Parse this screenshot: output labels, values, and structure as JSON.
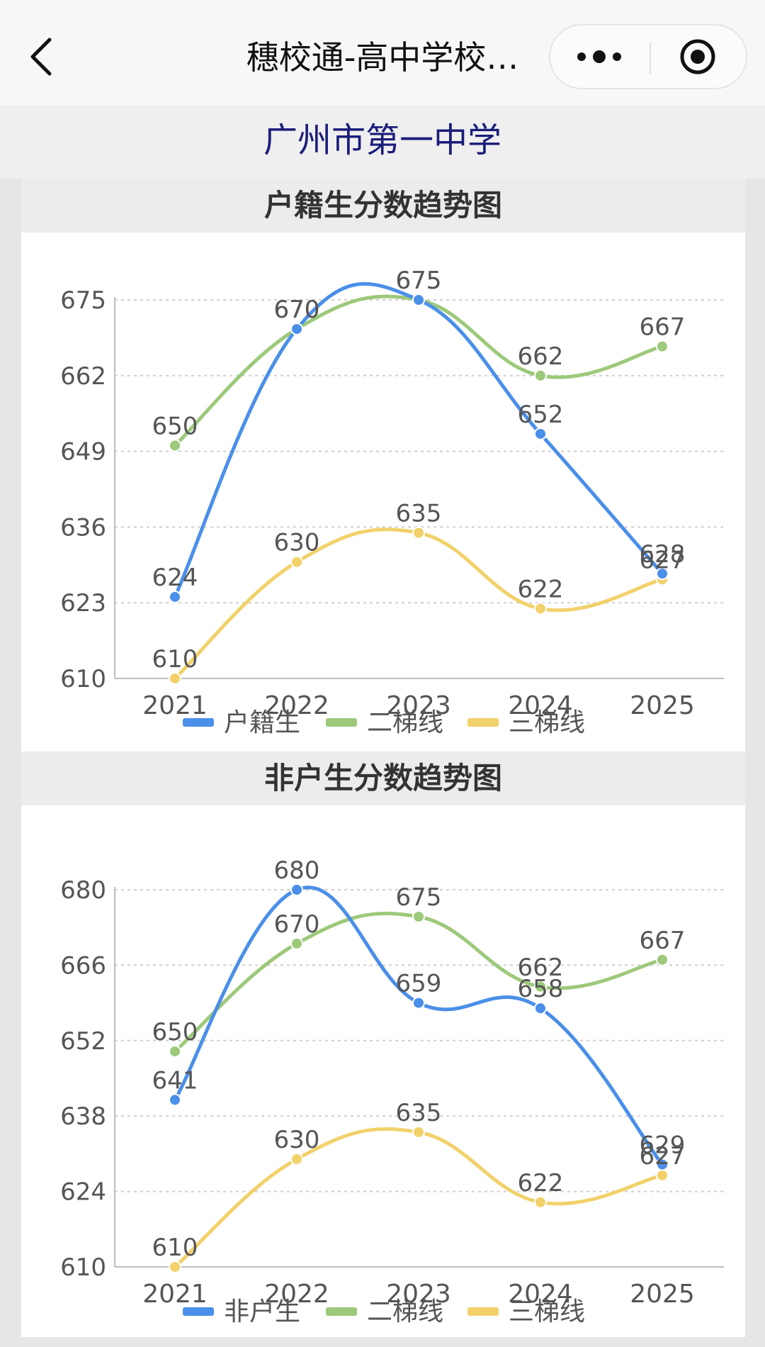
{
  "app": {
    "title": "穗校通-高中学校…",
    "school_name": "广州市第一中学"
  },
  "icons": {
    "back": "chevron-left-icon",
    "more": "more-dots-icon",
    "target": "record-target-icon"
  },
  "chart_data": [
    {
      "type": "line",
      "title": "户籍生分数趋势图",
      "categories": [
        "2021",
        "2022",
        "2023",
        "2024",
        "2025"
      ],
      "yticks": [
        "610",
        "623",
        "636",
        "649",
        "662",
        "675"
      ],
      "ylim": [
        610,
        675
      ],
      "grid": true,
      "legend_position": "bottom",
      "series": [
        {
          "name": "户籍生",
          "color": "#4a8fe9",
          "values": [
            624,
            670,
            675,
            652,
            628
          ],
          "labels": [
            "624",
            "670",
            "675",
            "652",
            "628"
          ]
        },
        {
          "name": "二梯线",
          "color": "#9dc97a",
          "values": [
            650,
            670,
            675,
            662,
            667
          ],
          "labels": [
            "650",
            "670",
            "675",
            "662",
            "667"
          ]
        },
        {
          "name": "三梯线",
          "color": "#f2d16b",
          "values": [
            610,
            630,
            635,
            622,
            627
          ],
          "labels": [
            "610",
            "630",
            "635",
            "622",
            "627"
          ]
        }
      ]
    },
    {
      "type": "line",
      "title": "非户生分数趋势图",
      "categories": [
        "2021",
        "2022",
        "2023",
        "2024",
        "2025"
      ],
      "yticks": [
        "610",
        "624",
        "638",
        "652",
        "666",
        "680"
      ],
      "ylim": [
        610,
        680
      ],
      "grid": true,
      "legend_position": "bottom",
      "series": [
        {
          "name": "非户生",
          "color": "#4a8fe9",
          "values": [
            641,
            680,
            659,
            658,
            629
          ],
          "labels": [
            "641",
            "680",
            "659",
            "658",
            "629"
          ]
        },
        {
          "name": "二梯线",
          "color": "#9dc97a",
          "values": [
            650,
            670,
            675,
            662,
            667
          ],
          "labels": [
            "650",
            "670",
            "675",
            "662",
            "667"
          ]
        },
        {
          "name": "三梯线",
          "color": "#f2d16b",
          "values": [
            610,
            630,
            635,
            622,
            627
          ],
          "labels": [
            "610",
            "630",
            "635",
            "622",
            "627"
          ]
        }
      ]
    }
  ]
}
